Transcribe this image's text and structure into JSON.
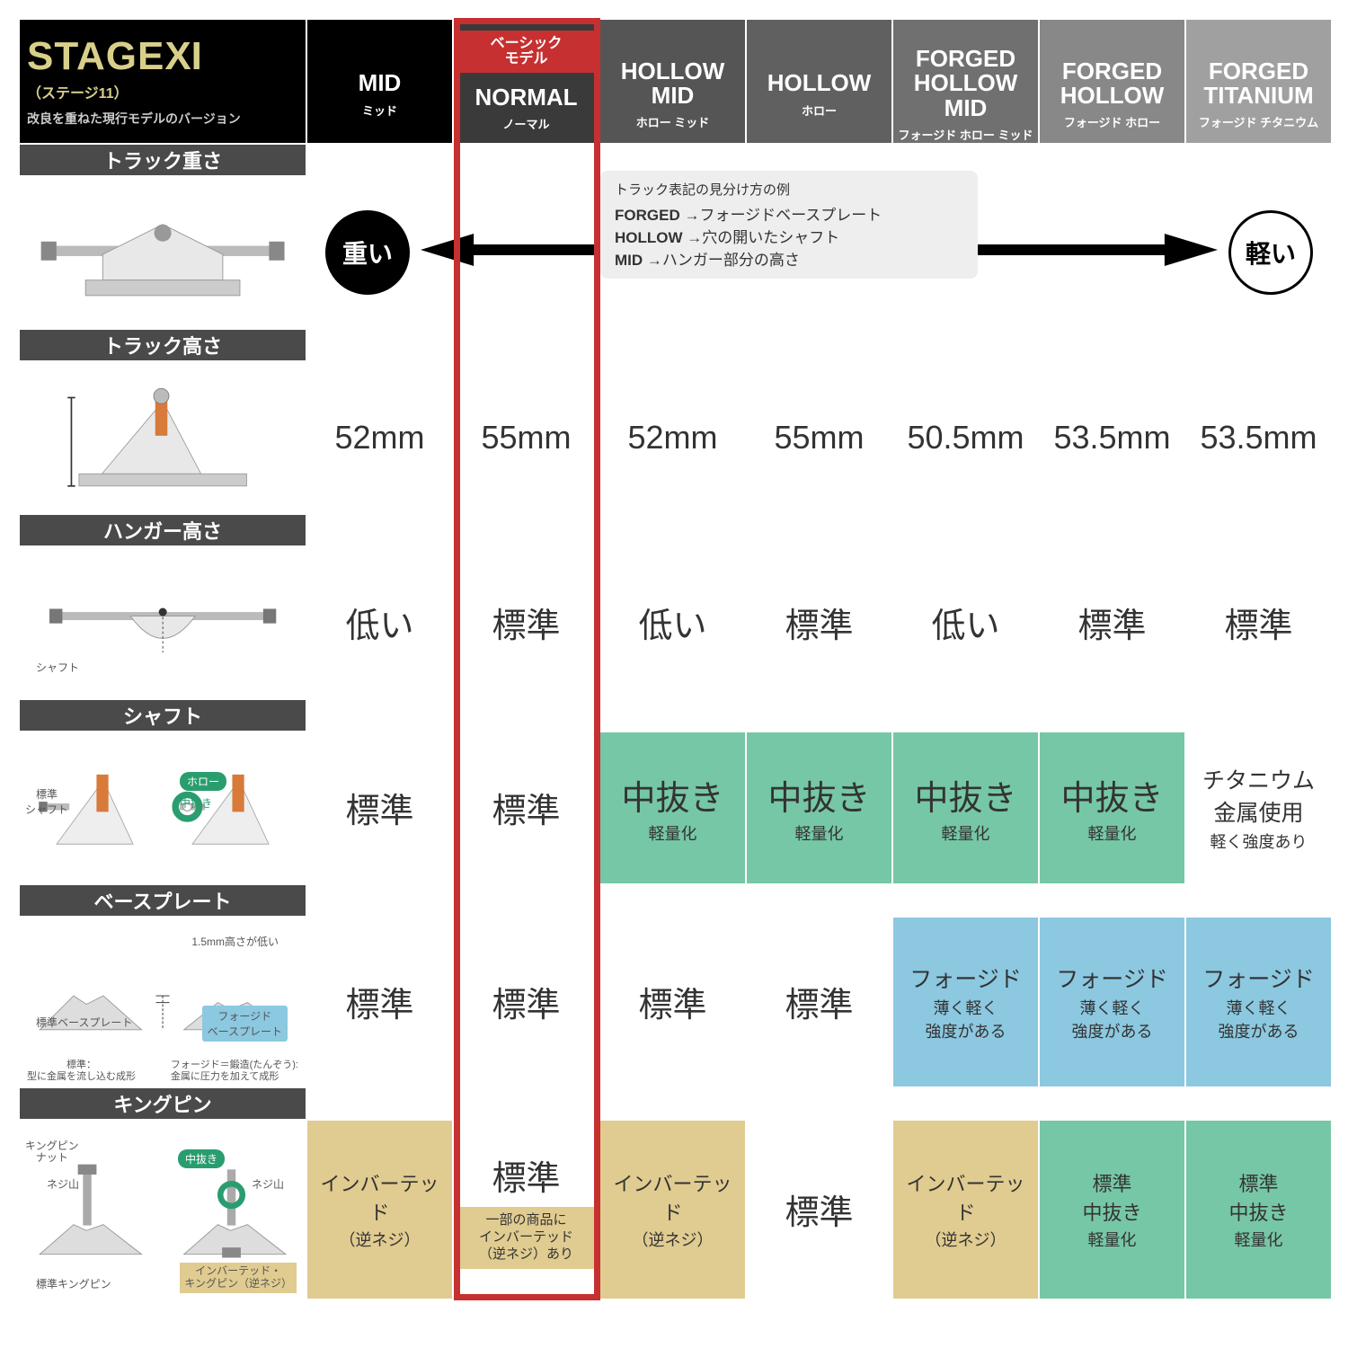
{
  "logo": {
    "line1": "STAGE",
    "line1b": "XI",
    "sub": "（ステージ11）",
    "desc": "改良を重ねた現行モデルのバージョン"
  },
  "colors": {
    "gold": "#d8d08a",
    "red": "#c73030",
    "black": "#000000",
    "hdr": [
      "#000000",
      "#3a3a3a",
      "#555555",
      "#606060",
      "#707070",
      "#888888",
      "#a0a0a0"
    ],
    "green": "#76c7a6",
    "blue": "#8cc8e0",
    "tan": "#e0cb90",
    "grey": "#4a4a4a"
  },
  "columns": [
    {
      "en": "MID",
      "jp": "ミッド"
    },
    {
      "en": "NORMAL",
      "jp": "ノーマル",
      "basic": "ベーシック\nモデル"
    },
    {
      "en": "HOLLOW MID",
      "jp": "ホロー ミッド"
    },
    {
      "en": "HOLLOW",
      "jp": "ホロー"
    },
    {
      "en": "FORGED HOLLOW MID",
      "jp": "フォージド ホロー ミッド"
    },
    {
      "en": "FORGED HOLLOW",
      "jp": "フォージド ホロー"
    },
    {
      "en": "FORGED TITANIUM",
      "jp": "フォージド チタニウム"
    }
  ],
  "rows": {
    "weight": {
      "label": "トラック重さ",
      "heavy": "重い",
      "light": "軽い",
      "tooltip_title": "トラック表記の見分け方の例",
      "t1": "FORGED",
      "t1d": " →フォージドベースプレート",
      "t2": "HOLLOW",
      "t2d": " →穴の開いたシャフト",
      "t3": "MID",
      "t3d": " →ハンガー部分の高さ"
    },
    "height": {
      "label": "トラック高さ",
      "vals": [
        "52mm",
        "55mm",
        "52mm",
        "55mm",
        "50.5mm",
        "53.5mm",
        "53.5mm"
      ]
    },
    "hanger": {
      "label": "ハンガー高さ",
      "vals": [
        "低い",
        "標準",
        "低い",
        "標準",
        "低い",
        "標準",
        "標準"
      ],
      "annot": "シャフト"
    },
    "shaft": {
      "label": "シャフト",
      "annot1": "標準\nシャフト",
      "annot2": "ホロー",
      "annot3": "中抜き",
      "cells": [
        {
          "t": "標準"
        },
        {
          "t": "標準"
        },
        {
          "t": "中抜き",
          "s": "軽量化",
          "c": "green"
        },
        {
          "t": "中抜き",
          "s": "軽量化",
          "c": "green"
        },
        {
          "t": "中抜き",
          "s": "軽量化",
          "c": "green"
        },
        {
          "t": "中抜き",
          "s": "軽量化",
          "c": "green"
        },
        {
          "t": "チタニウム\n金属使用",
          "s": "軽く強度あり",
          "small": true
        }
      ]
    },
    "base": {
      "label": "ベースプレート",
      "annot1": "標準ベースプレート",
      "annot2": "1.5mm高さが低い",
      "annot3": "フォージド\nベースプレート",
      "annot4": "標準：\n型に金属を流し込む成形",
      "annot5": "フォージド＝鍛造(たんぞう):\n金属に圧力を加えて成形",
      "cells": [
        {
          "t": "標準"
        },
        {
          "t": "標準"
        },
        {
          "t": "標準"
        },
        {
          "t": "標準"
        },
        {
          "t": "フォージド",
          "s": "薄く軽く\n強度がある",
          "c": "blue",
          "small": true
        },
        {
          "t": "フォージド",
          "s": "薄く軽く\n強度がある",
          "c": "blue",
          "small": true
        },
        {
          "t": "フォージド",
          "s": "薄く軽く\n強度がある",
          "c": "blue",
          "small": true
        }
      ]
    },
    "king": {
      "label": "キングピン",
      "annot1": "キングピン\nナット",
      "annot2": "ネジ山",
      "annot3": "中抜き",
      "annot4": "ネジ山",
      "annot5": "標準キングピン",
      "annot6": "インバーテッド・\nキングピン（逆ネジ）",
      "cells": [
        {
          "t": "インバーテッド",
          "s": "（逆ネジ）",
          "c": "tan",
          "small": true
        },
        {
          "t": "標準",
          "extra": "一部の商品に\nインバーテッド\n（逆ネジ）あり"
        },
        {
          "t": "インバーテッド",
          "s": "（逆ネジ）",
          "c": "tan",
          "small": true
        },
        {
          "t": "標準"
        },
        {
          "t": "インバーテッド",
          "s": "（逆ネジ）",
          "c": "tan",
          "small": true
        },
        {
          "t": "標準\n中抜き",
          "s": "軽量化",
          "c": "green",
          "small": true
        },
        {
          "t": "標準\n中抜き",
          "s": "軽量化",
          "c": "green",
          "small": true
        }
      ]
    }
  }
}
